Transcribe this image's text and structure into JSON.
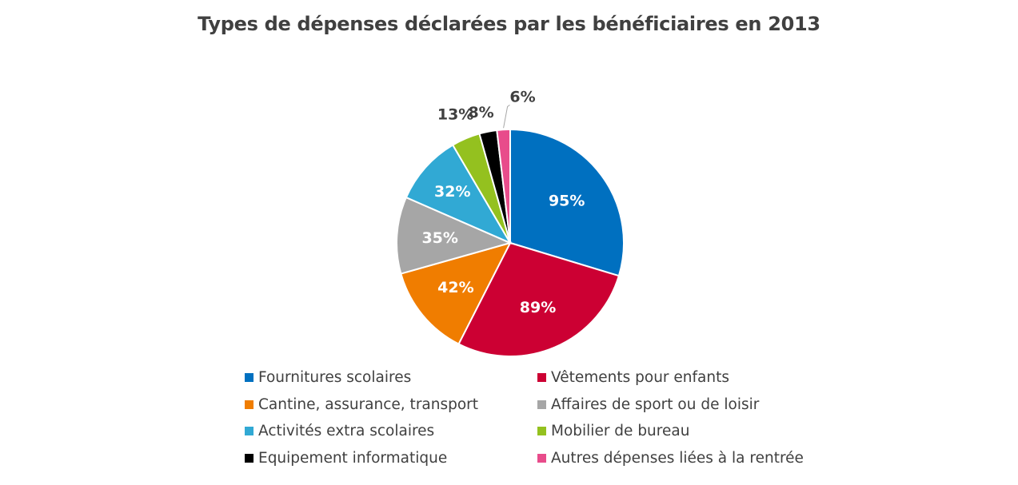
{
  "chart_data": {
    "type": "pie",
    "title": "Types de dépenses déclarées par les bénéficiaires en 2013",
    "legend_position": "bottom",
    "unit": "%",
    "slices": [
      {
        "label": "Fournitures scolaires",
        "value": 95,
        "value_label": "95%",
        "color": "#0070C0",
        "label_color": "#ffffff"
      },
      {
        "label": "Vêtements pour enfants",
        "value": 89,
        "value_label": "89%",
        "color": "#CC0033",
        "label_color": "#ffffff"
      },
      {
        "label": "Cantine, assurance, transport",
        "value": 42,
        "value_label": "42%",
        "color": "#F07D00",
        "label_color": "#ffffff"
      },
      {
        "label": "Affaires de sport ou de loisir",
        "value": 35,
        "value_label": "35%",
        "color": "#A6A6A6",
        "label_color": "#ffffff"
      },
      {
        "label": "Activités extra scolaires",
        "value": 32,
        "value_label": "32%",
        "color": "#31A9D4",
        "label_color": "#ffffff"
      },
      {
        "label": "Mobilier de bureau",
        "value": 13,
        "value_label": "13%",
        "color": "#94C11F",
        "label_color": "#404040"
      },
      {
        "label": "Equipement informatique",
        "value": 8,
        "value_label": "8%",
        "color": "#000000",
        "label_color": "#404040"
      },
      {
        "label": "Autres dépenses liées à la rentrée",
        "value": 6,
        "value_label": "6%",
        "color": "#E84C8B",
        "label_color": "#404040"
      }
    ]
  }
}
